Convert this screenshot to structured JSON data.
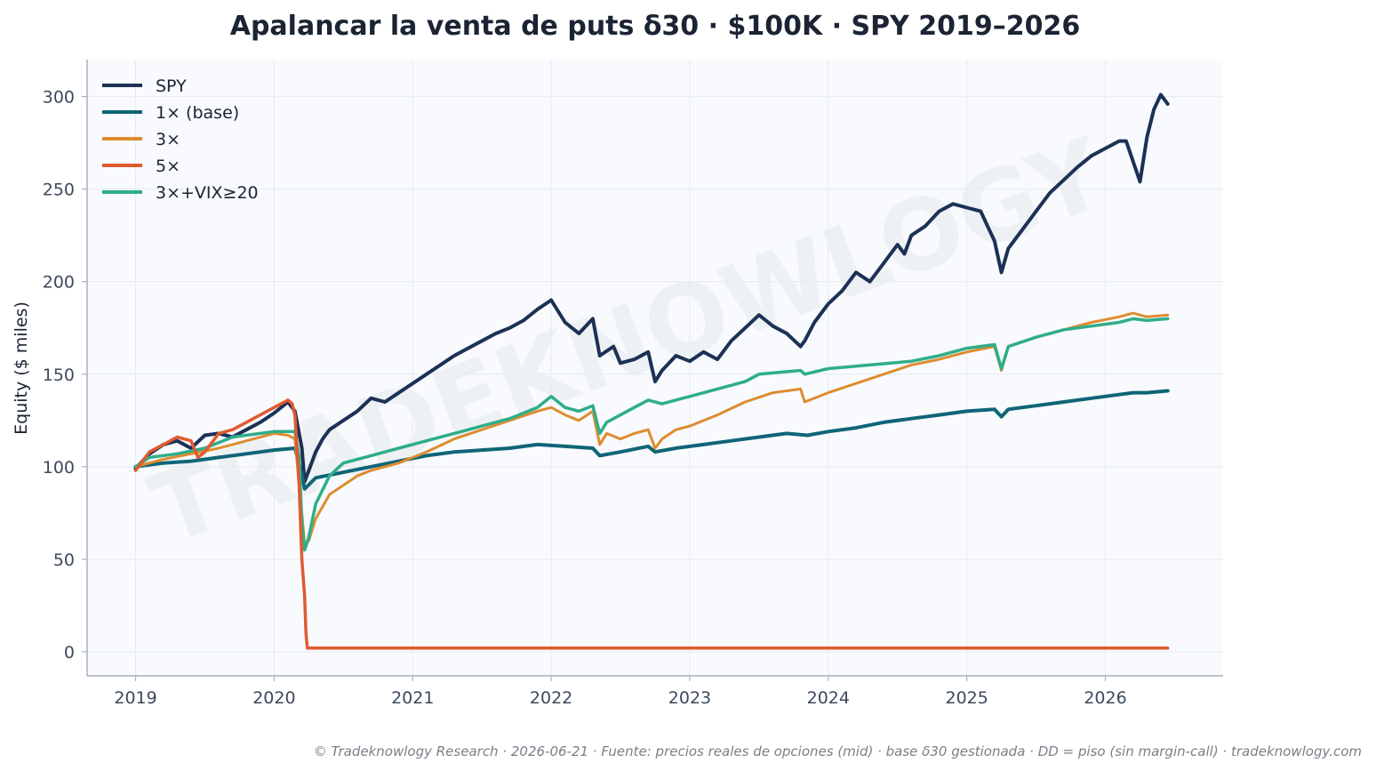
{
  "chart_data": {
    "type": "line",
    "title": "Apalancar la venta de puts δ30 · $100K · SPY 2019–2026",
    "ylabel": "Equity ($ miles)",
    "xlabel": "",
    "xlim": [
      2018.65,
      2026.85
    ],
    "ylim": [
      -13,
      320
    ],
    "x_ticks": [
      2019,
      2020,
      2021,
      2022,
      2023,
      2024,
      2025,
      2026
    ],
    "x_tick_labels": [
      "2019",
      "2020",
      "2021",
      "2022",
      "2023",
      "2024",
      "2025",
      "2026"
    ],
    "y_ticks": [
      0,
      50,
      100,
      150,
      200,
      250,
      300
    ],
    "y_tick_labels": [
      "0",
      "50",
      "100",
      "150",
      "200",
      "250",
      "300"
    ],
    "grid": true,
    "legend_position": "top-left",
    "watermark": "TRADEKNOWLOGY",
    "footer": "© Tradeknowlogy Research   ·   2026-06-21   ·   Fuente: precios reales de opciones (mid) · base δ30 gestionada · DD = piso (sin margin-call)   ·   tradeknowlogy.com",
    "series": [
      {
        "name": "SPY",
        "color": "#1c3155",
        "x": [
          2019.0,
          2019.1,
          2019.2,
          2019.3,
          2019.4,
          2019.5,
          2019.6,
          2019.7,
          2019.8,
          2019.9,
          2020.0,
          2020.1,
          2020.15,
          2020.2,
          2020.22,
          2020.25,
          2020.3,
          2020.35,
          2020.4,
          2020.5,
          2020.6,
          2020.7,
          2020.8,
          2020.9,
          2021.0,
          2021.1,
          2021.2,
          2021.3,
          2021.4,
          2021.5,
          2021.6,
          2021.7,
          2021.8,
          2021.9,
          2022.0,
          2022.1,
          2022.2,
          2022.3,
          2022.35,
          2022.45,
          2022.5,
          2022.6,
          2022.7,
          2022.75,
          2022.8,
          2022.9,
          2023.0,
          2023.1,
          2023.2,
          2023.3,
          2023.4,
          2023.5,
          2023.6,
          2023.7,
          2023.8,
          2023.83,
          2023.9,
          2024.0,
          2024.1,
          2024.2,
          2024.3,
          2024.4,
          2024.5,
          2024.55,
          2024.6,
          2024.7,
          2024.8,
          2024.9,
          2025.0,
          2025.1,
          2025.15,
          2025.2,
          2025.25,
          2025.3,
          2025.4,
          2025.5,
          2025.6,
          2025.7,
          2025.8,
          2025.9,
          2026.0,
          2026.1,
          2026.15,
          2026.2,
          2026.25,
          2026.3,
          2026.35,
          2026.4,
          2026.45
        ],
        "y": [
          99,
          107,
          112,
          114,
          110,
          117,
          118,
          116,
          120,
          124,
          129,
          135,
          130,
          110,
          92,
          98,
          108,
          115,
          120,
          125,
          130,
          137,
          135,
          140,
          145,
          150,
          155,
          160,
          164,
          168,
          172,
          175,
          179,
          185,
          190,
          178,
          172,
          180,
          160,
          165,
          156,
          158,
          162,
          146,
          152,
          160,
          157,
          162,
          158,
          168,
          175,
          182,
          176,
          172,
          165,
          168,
          178,
          188,
          195,
          205,
          200,
          210,
          220,
          215,
          225,
          230,
          238,
          242,
          240,
          238,
          230,
          222,
          205,
          218,
          228,
          238,
          248,
          255,
          262,
          268,
          272,
          276,
          276,
          265,
          254,
          278,
          293,
          301,
          296
        ]
      },
      {
        "name": "1× (base)",
        "color": "#0f6577",
        "x": [
          2019.0,
          2019.2,
          2019.4,
          2019.6,
          2019.8,
          2020.0,
          2020.15,
          2020.2,
          2020.22,
          2020.3,
          2020.5,
          2020.7,
          2020.9,
          2021.1,
          2021.3,
          2021.5,
          2021.7,
          2021.9,
          2022.1,
          2022.3,
          2022.35,
          2022.5,
          2022.7,
          2022.75,
          2022.9,
          2023.1,
          2023.3,
          2023.5,
          2023.7,
          2023.85,
          2024.0,
          2024.2,
          2024.4,
          2024.6,
          2024.8,
          2025.0,
          2025.2,
          2025.25,
          2025.3,
          2025.5,
          2025.7,
          2025.9,
          2026.1,
          2026.2,
          2026.3,
          2026.45
        ],
        "y": [
          100,
          102,
          103,
          105,
          107,
          109,
          110,
          96,
          88,
          94,
          97,
          100,
          103,
          106,
          108,
          109,
          110,
          112,
          111,
          110,
          106,
          108,
          111,
          108,
          110,
          112,
          114,
          116,
          118,
          117,
          119,
          121,
          124,
          126,
          128,
          130,
          131,
          127,
          131,
          133,
          135,
          137,
          139,
          140,
          140,
          141
        ]
      },
      {
        "name": "3×",
        "color": "#de8c2f",
        "x": [
          2019.0,
          2019.2,
          2019.4,
          2019.6,
          2019.8,
          2020.0,
          2020.1,
          2020.15,
          2020.2,
          2020.22,
          2020.25,
          2020.3,
          2020.4,
          2020.5,
          2020.6,
          2020.7,
          2020.8,
          2020.9,
          2021.0,
          2021.1,
          2021.3,
          2021.5,
          2021.7,
          2021.9,
          2022.0,
          2022.1,
          2022.2,
          2022.3,
          2022.35,
          2022.4,
          2022.5,
          2022.6,
          2022.7,
          2022.75,
          2022.8,
          2022.9,
          2023.0,
          2023.2,
          2023.4,
          2023.6,
          2023.8,
          2023.83,
          2024.0,
          2024.2,
          2024.4,
          2024.6,
          2024.8,
          2025.0,
          2025.2,
          2025.25,
          2025.3,
          2025.5,
          2025.7,
          2025.9,
          2026.1,
          2026.2,
          2026.3,
          2026.45
        ],
        "y": [
          100,
          104,
          107,
          110,
          114,
          118,
          117,
          115,
          75,
          58,
          60,
          72,
          85,
          90,
          95,
          98,
          100,
          102,
          105,
          108,
          115,
          120,
          125,
          130,
          132,
          128,
          125,
          130,
          112,
          118,
          115,
          118,
          120,
          110,
          115,
          120,
          122,
          128,
          135,
          140,
          142,
          135,
          140,
          145,
          150,
          155,
          158,
          162,
          165,
          152,
          165,
          170,
          174,
          178,
          181,
          183,
          181,
          182
        ]
      },
      {
        "name": "5×",
        "color": "#e05a30",
        "x": [
          2019.0,
          2019.1,
          2019.2,
          2019.3,
          2019.4,
          2019.45,
          2019.5,
          2019.6,
          2019.7,
          2019.8,
          2019.9,
          2020.0,
          2020.1,
          2020.13,
          2020.15,
          2020.18,
          2020.2,
          2020.22,
          2020.23,
          2020.24,
          2020.3,
          2020.5,
          2021.0,
          2022.0,
          2023.0,
          2024.0,
          2025.0,
          2026.0,
          2026.45
        ],
        "y": [
          98,
          108,
          112,
          116,
          114,
          105,
          108,
          118,
          120,
          124,
          128,
          132,
          136,
          134,
          128,
          90,
          50,
          30,
          10,
          2,
          2,
          2,
          2,
          2,
          2,
          2,
          2,
          2,
          2
        ]
      },
      {
        "name": "3×+VIX≥20",
        "color": "#2fad8a",
        "x": [
          2019.0,
          2019.1,
          2019.3,
          2019.5,
          2019.7,
          2019.9,
          2020.0,
          2020.1,
          2020.15,
          2020.18,
          2020.2,
          2020.22,
          2020.25,
          2020.3,
          2020.4,
          2020.5,
          2020.7,
          2020.9,
          2021.1,
          2021.3,
          2021.5,
          2021.7,
          2021.9,
          2022.0,
          2022.1,
          2022.2,
          2022.3,
          2022.35,
          2022.4,
          2022.5,
          2022.6,
          2022.7,
          2022.8,
          2022.9,
          2023.0,
          2023.2,
          2023.4,
          2023.5,
          2023.8,
          2023.83,
          2024.0,
          2024.3,
          2024.6,
          2024.8,
          2025.0,
          2025.2,
          2025.25,
          2025.3,
          2025.5,
          2025.7,
          2025.9,
          2026.1,
          2026.2,
          2026.3,
          2026.45
        ],
        "y": [
          100,
          105,
          107,
          110,
          116,
          118,
          119,
          119,
          119,
          105,
          70,
          55,
          62,
          80,
          95,
          102,
          106,
          110,
          114,
          118,
          122,
          126,
          132,
          138,
          132,
          130,
          133,
          118,
          124,
          128,
          132,
          136,
          134,
          136,
          138,
          142,
          146,
          150,
          152,
          150,
          153,
          155,
          157,
          160,
          164,
          166,
          153,
          165,
          170,
          174,
          176,
          178,
          180,
          179,
          180
        ]
      }
    ]
  }
}
